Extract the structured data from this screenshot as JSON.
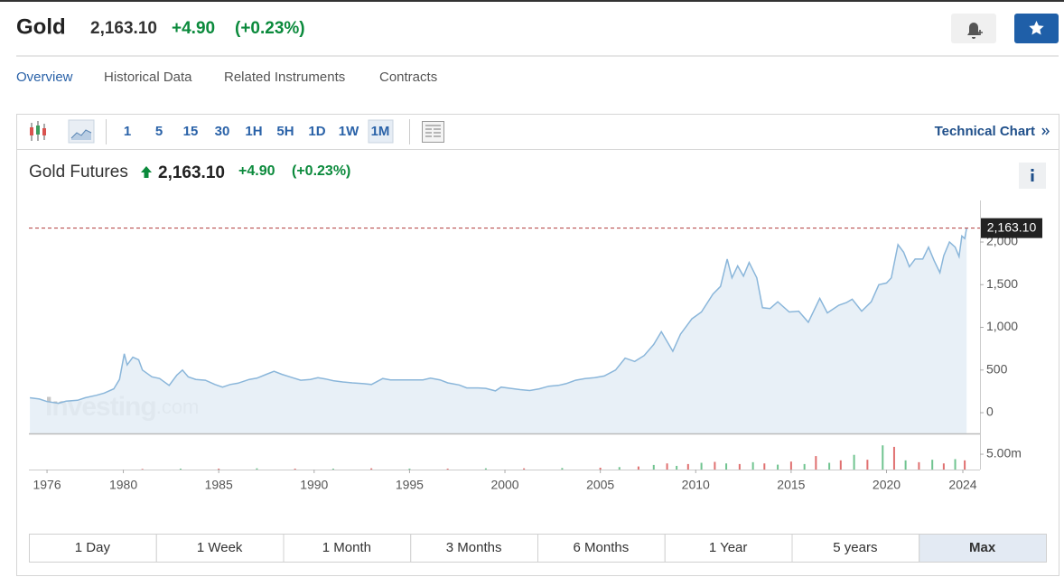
{
  "header": {
    "title": "Gold",
    "price": "2,163.10",
    "change": "+4.90",
    "change_percent": "(+0.23%)"
  },
  "tabs": [
    "Overview",
    "Historical Data",
    "Related Instruments",
    "Contracts"
  ],
  "active_tab": "Overview",
  "toolbar": {
    "intervals": [
      "1",
      "5",
      "15",
      "30",
      "1H",
      "5H",
      "1D",
      "1W",
      "1M"
    ],
    "active_interval": "1M",
    "link": "Technical Chart"
  },
  "chart_data": {
    "type": "line",
    "title": "Gold Futures",
    "price": "2,163.10",
    "change": "+4.90",
    "change_percent": "(+0.23%)",
    "watermark": [
      "Investing",
      ".com"
    ],
    "x": [
      1975.1,
      1975.6,
      1976.0,
      1976.6,
      1977.0,
      1977.6,
      1978.0,
      1978.6,
      1979.0,
      1979.5,
      1979.8,
      1980.05,
      1980.2,
      1980.5,
      1980.8,
      1981.0,
      1981.5,
      1981.9,
      1982.4,
      1982.8,
      1983.1,
      1983.4,
      1983.8,
      1984.3,
      1984.8,
      1985.2,
      1985.6,
      1986.0,
      1986.6,
      1987.0,
      1987.5,
      1987.9,
      1988.3,
      1988.8,
      1989.3,
      1989.8,
      1990.2,
      1990.6,
      1991.0,
      1991.5,
      1992.0,
      1992.6,
      1993.0,
      1993.6,
      1994.0,
      1994.6,
      1995.2,
      1995.7,
      1996.1,
      1996.6,
      1997.0,
      1997.6,
      1998.0,
      1998.6,
      1999.0,
      1999.5,
      1999.8,
      2000.3,
      2000.8,
      2001.3,
      2001.8,
      2002.3,
      2002.8,
      2003.2,
      2003.7,
      2004.2,
      2004.7,
      2005.2,
      2005.8,
      2006.3,
      2006.8,
      2007.3,
      2007.8,
      2008.2,
      2008.8,
      2009.2,
      2009.8,
      2010.3,
      2010.9,
      2011.3,
      2011.65,
      2011.9,
      2012.2,
      2012.5,
      2012.8,
      2013.2,
      2013.5,
      2013.9,
      2014.3,
      2014.9,
      2015.4,
      2015.9,
      2016.5,
      2016.9,
      2017.5,
      2017.9,
      2018.2,
      2018.7,
      2019.2,
      2019.6,
      2020.0,
      2020.25,
      2020.6,
      2020.9,
      2021.2,
      2021.5,
      2021.9,
      2022.2,
      2022.5,
      2022.8,
      2023.0,
      2023.3,
      2023.6,
      2023.8,
      2023.95,
      2024.1,
      2024.2
    ],
    "values": [
      175,
      160,
      130,
      110,
      135,
      145,
      175,
      205,
      230,
      280,
      390,
      690,
      560,
      650,
      620,
      500,
      420,
      400,
      320,
      440,
      500,
      420,
      390,
      380,
      330,
      300,
      330,
      345,
      390,
      405,
      450,
      485,
      450,
      415,
      380,
      390,
      410,
      395,
      375,
      360,
      350,
      340,
      330,
      400,
      385,
      385,
      385,
      385,
      405,
      385,
      350,
      325,
      290,
      290,
      285,
      255,
      300,
      285,
      270,
      260,
      280,
      310,
      320,
      340,
      380,
      400,
      410,
      430,
      500,
      640,
      600,
      670,
      800,
      950,
      720,
      920,
      1100,
      1180,
      1390,
      1480,
      1800,
      1580,
      1720,
      1600,
      1760,
      1580,
      1230,
      1220,
      1300,
      1180,
      1190,
      1060,
      1340,
      1170,
      1260,
      1290,
      1330,
      1190,
      1300,
      1500,
      1520,
      1580,
      1970,
      1880,
      1710,
      1800,
      1800,
      1940,
      1780,
      1640,
      1840,
      2000,
      1940,
      1830,
      2070,
      2040,
      2163.1
    ],
    "color": "#8ab6da",
    "fill": "#e4edf6",
    "xlim": [
      1975.05,
      2024.9
    ],
    "xticks": [
      1976,
      1980,
      1985,
      1990,
      1995,
      2000,
      2005,
      2010,
      2015,
      2020,
      2024
    ],
    "ylim": [
      -243,
      2487
    ],
    "yticks": [
      0,
      500,
      {
        "value": 1000,
        "label": "1,000"
      },
      {
        "value": 1500,
        "label": "1,500"
      },
      {
        "value": 2000,
        "label": "2,000"
      }
    ],
    "grid": false,
    "last_value": 2163.1,
    "last_value_label": "2,163.10",
    "volume": {
      "x": [
        1981,
        1983,
        1985,
        1987,
        1989,
        1991,
        1993,
        1995,
        1997,
        1999,
        2001,
        2003,
        2005,
        2006,
        2007,
        2007.8,
        2008.5,
        2009,
        2009.6,
        2010.3,
        2011,
        2011.6,
        2012.3,
        2013,
        2013.6,
        2014.3,
        2015,
        2015.7,
        2016.3,
        2017,
        2017.6,
        2018.3,
        2019,
        2019.8,
        2020.4,
        2021,
        2021.7,
        2022.4,
        2023,
        2023.6,
        2024.1
      ],
      "values": [
        0.2,
        0.3,
        0.3,
        0.4,
        0.3,
        0.3,
        0.4,
        0.3,
        0.3,
        0.4,
        0.4,
        0.5,
        0.6,
        0.8,
        1.0,
        1.5,
        2.0,
        1.2,
        1.8,
        2.2,
        2.5,
        2.0,
        1.8,
        2.4,
        2.0,
        1.6,
        2.6,
        1.8,
        4.4,
        2.2,
        3.0,
        4.8,
        3.2,
        7.9,
        7.4,
        3.0,
        2.4,
        3.2,
        2.0,
        3.4,
        3.0
      ],
      "colors": [
        "#e07070",
        "#70c490",
        "#e07070",
        "#70c490",
        "#e07070",
        "#70c490",
        "#e07070",
        "#70c490",
        "#e07070",
        "#70c490",
        "#e07070",
        "#70c490",
        "#e07070",
        "#70c490",
        "#e07070",
        "#70c490",
        "#e07070",
        "#70c490",
        "#e07070",
        "#70c490",
        "#e07070",
        "#70c490",
        "#e07070",
        "#70c490",
        "#e07070",
        "#70c490",
        "#e07070",
        "#70c490",
        "#e07070",
        "#70c490",
        "#e07070",
        "#70c490",
        "#e07070",
        "#70c490",
        "#e07070",
        "#70c490",
        "#e07070",
        "#70c490",
        "#e07070",
        "#70c490",
        "#e07070"
      ],
      "ylim": [
        0,
        11.2
      ],
      "yticks": [
        {
          "value": 5,
          "label": "5.00m"
        }
      ]
    }
  },
  "periods": [
    "1 Day",
    "1 Week",
    "1 Month",
    "3 Months",
    "6 Months",
    "1 Year",
    "5 years",
    "Max"
  ],
  "active_period": "Max"
}
